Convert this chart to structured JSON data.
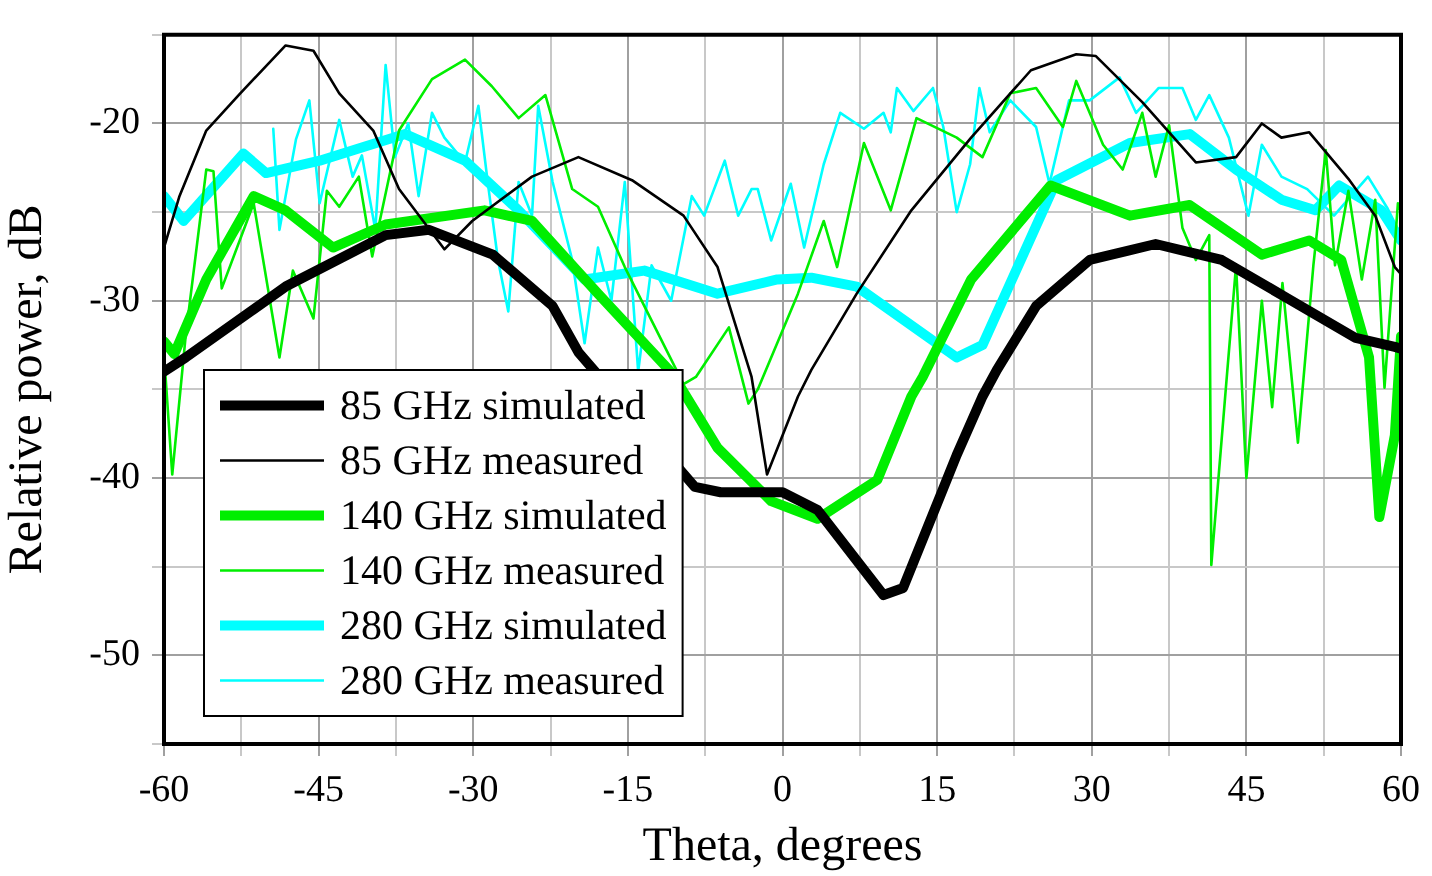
{
  "chart_data": {
    "type": "line",
    "xlabel": "Theta, degrees",
    "ylabel": "Relative power, dB",
    "xlim": [
      -60,
      60
    ],
    "ylim": [
      -55,
      -15
    ],
    "xticks": [
      -60,
      {
        "value": -52.5,
        "label": null
      },
      -45,
      {
        "value": -37.5,
        "label": null
      },
      -30,
      {
        "value": -22.5,
        "label": null
      },
      -15,
      {
        "value": -7.5,
        "label": null
      },
      0,
      {
        "value": 7.5,
        "label": null
      },
      15,
      {
        "value": 22.5,
        "label": null
      },
      30,
      {
        "value": 37.5,
        "label": null
      },
      45,
      {
        "value": 52.5,
        "label": null
      },
      60
    ],
    "yticks": [
      {
        "value": -55,
        "label": null
      },
      -50,
      {
        "value": -45,
        "label": null
      },
      -40,
      {
        "value": -35,
        "label": null
      },
      -30,
      {
        "value": -25,
        "label": null
      },
      -20,
      {
        "value": -15,
        "label": null
      }
    ],
    "grid": true,
    "legend": "bottom left",
    "marker": "none",
    "line_style": "solid",
    "series": [
      {
        "name": "85 GHz simulated",
        "color": "#000000",
        "x": [
          -60,
          -57.9,
          -48.2,
          -38.5,
          -34.3,
          -28.1,
          -22.3,
          -19.8,
          -8.5,
          -6,
          0,
          3.4,
          9.8,
          11.7,
          16.9,
          19.4,
          20.8,
          24.6,
          29.8,
          36.2,
          42.6,
          49.1,
          55.6,
          59.4,
          60
        ],
        "values": [
          -34,
          -33.2,
          -29.2,
          -26.3,
          -26,
          -27.4,
          -30.3,
          -32.9,
          -40.5,
          -40.8,
          -40.8,
          -41.8,
          -46.6,
          -46.2,
          -38.7,
          -35.4,
          -33.9,
          -30.3,
          -27.7,
          -26.8,
          -27.7,
          -29.9,
          -32.1,
          -32.6,
          -32.7
        ]
      },
      {
        "name": "85 GHz measured",
        "color": "#000000",
        "x": [
          -60,
          -58.5,
          -55.9,
          -52.6,
          -48.2,
          -45.5,
          -43,
          -39.7,
          -37.2,
          -32.8,
          -30.1,
          -24.3,
          -19.8,
          -14.6,
          -9.6,
          -6.3,
          -3,
          -1.5,
          1.5,
          2.8,
          7.2,
          12.5,
          18.3,
          24.1,
          28.5,
          30.4,
          34.9,
          40.1,
          44,
          46.5,
          48.4,
          51.1,
          55,
          57.5,
          59.4,
          60
        ],
        "values": [
          -27,
          -24.1,
          -20.4,
          -18.3,
          -15.6,
          -15.9,
          -18.3,
          -20.4,
          -23.7,
          -27.1,
          -25.5,
          -23,
          -21.9,
          -23.2,
          -25.2,
          -28.1,
          -34.3,
          -39.8,
          -35.4,
          -33.9,
          -29.6,
          -24.9,
          -20.8,
          -17,
          -16.1,
          -16.2,
          -18.8,
          -22.2,
          -21.9,
          -20,
          -20.8,
          -20.5,
          -23.2,
          -25.2,
          -28.1,
          -28.5
        ]
      },
      {
        "name": "140 GHz simulated",
        "color": "#00ee00",
        "x": [
          -60,
          -59,
          -55.9,
          -51.3,
          -48.2,
          -43.6,
          -38.5,
          -28.9,
          -24.3,
          -17.9,
          -10.7,
          -6.3,
          -1.1,
          3.4,
          9.2,
          12.5,
          13.6,
          18.3,
          26,
          33.7,
          39.5,
          46.5,
          51.1,
          54.2,
          56.9,
          57.9,
          59.4,
          60
        ],
        "values": [
          -32.3,
          -33,
          -28.8,
          -24.1,
          -24.9,
          -27,
          -25.7,
          -24.9,
          -25.5,
          -29.6,
          -34.1,
          -38.3,
          -41.3,
          -42.3,
          -40.1,
          -35.4,
          -34.3,
          -28.8,
          -23.5,
          -25.2,
          -24.6,
          -27.4,
          -26.6,
          -27.7,
          -33.2,
          -42.2,
          -37.6,
          -32
        ]
      },
      {
        "name": "140 GHz measured",
        "color": "#00ee00",
        "x": [
          -60,
          -59.2,
          -57.9,
          -55.9,
          -55.2,
          -54.4,
          -51.3,
          -48.8,
          -47.5,
          -45.5,
          -44.2,
          -43,
          -41.1,
          -39.8,
          -37.2,
          -34,
          -30.8,
          -28.2,
          -25.6,
          -23,
          -20.4,
          -17.9,
          -15.3,
          -9.6,
          -8.4,
          -5.2,
          -3.3,
          -2.4,
          1.5,
          4,
          5.3,
          7.9,
          10.5,
          13,
          16.9,
          19.4,
          22.1,
          24.6,
          27.2,
          28.5,
          31.1,
          33,
          34.9,
          36.2,
          37.5,
          38.8,
          40.1,
          41.4,
          41.6,
          43,
          44,
          45,
          46.5,
          47.5,
          48.5,
          50,
          51.5,
          52.7,
          53.6,
          54.9,
          56.2,
          57.5,
          58.4,
          59.7,
          60
        ],
        "values": [
          -33,
          -39.8,
          -32,
          -22.6,
          -22.7,
          -29.3,
          -24.5,
          -33.2,
          -28.3,
          -31,
          -23.8,
          -24.7,
          -23,
          -27.5,
          -20.4,
          -17.5,
          -16.4,
          -17.9,
          -19.7,
          -18.4,
          -23.7,
          -24.7,
          -28.1,
          -34.7,
          -34.3,
          -31.5,
          -35.8,
          -35,
          -29.6,
          -25.5,
          -28.1,
          -21.1,
          -24.9,
          -19.7,
          -20.8,
          -21.9,
          -18.3,
          -18,
          -20.2,
          -17.6,
          -21.2,
          -22.6,
          -19.4,
          -23,
          -20.1,
          -25.9,
          -27.7,
          -26.3,
          -44.9,
          -35,
          -28,
          -40,
          -30,
          -36,
          -29,
          -38,
          -28,
          -21.5,
          -28,
          -23.8,
          -28.8,
          -24.3,
          -34.9,
          -24.5,
          -25
        ]
      },
      {
        "name": "280 GHz simulated",
        "color": "#00ffff",
        "x": [
          -60,
          -58.1,
          -52.3,
          -50.1,
          -44.9,
          -40.5,
          -36.6,
          -30.8,
          -25.6,
          -19.2,
          -13.4,
          -6.3,
          -0.5,
          2.8,
          7.2,
          16.9,
          19.4,
          26.6,
          33.7,
          39.5,
          44,
          48.4,
          51.7,
          54,
          58.1,
          60
        ],
        "values": [
          -24.1,
          -25.5,
          -21.7,
          -22.8,
          -22.1,
          -21.3,
          -20.6,
          -22.1,
          -24.9,
          -28.8,
          -28.3,
          -29.6,
          -28.8,
          -28.7,
          -29.2,
          -33.2,
          -32.5,
          -23.2,
          -21.1,
          -20.6,
          -22.6,
          -24.3,
          -24.9,
          -23.5,
          -24.9,
          -26.6
        ]
      },
      {
        "name": "280 GHz measured",
        "color": "#00ffff",
        "x": [
          -49.4,
          -48.8,
          -47.2,
          -45.9,
          -44.9,
          -43,
          -41.7,
          -40.8,
          -39.5,
          -38.5,
          -37.6,
          -36.3,
          -35.3,
          -34,
          -32.8,
          -30.8,
          -29.5,
          -28.6,
          -27.6,
          -26.6,
          -25.6,
          -24.3,
          -23.7,
          -22.3,
          -20.4,
          -19.2,
          -17.9,
          -16.6,
          -15.3,
          -14,
          -12.7,
          -10.8,
          -8.8,
          -7.6,
          -5.6,
          -4.3,
          -3,
          -2.4,
          -1.1,
          0.8,
          2.1,
          4,
          5.6,
          7.9,
          9.8,
          10.5,
          11.1,
          12.7,
          14.6,
          15.6,
          16.9,
          18.2,
          19.1,
          20.1,
          22.1,
          24.6,
          25.9,
          27.8,
          29.8,
          32.7,
          34.3,
          36.5,
          38.8,
          40.1,
          41.4,
          43.3,
          45.2,
          46.5,
          48.4,
          50.9,
          53.5,
          56.8,
          58.7,
          59.9
        ],
        "values": [
          -20.3,
          -26,
          -20.9,
          -18.7,
          -24.5,
          -19.8,
          -23,
          -21.8,
          -26,
          -16.7,
          -21.9,
          -20,
          -24.1,
          -19.4,
          -20.8,
          -22.2,
          -19,
          -23.3,
          -27.7,
          -30.6,
          -23.3,
          -25.2,
          -19,
          -23.3,
          -27.7,
          -32.4,
          -27,
          -30,
          -23.3,
          -34,
          -28,
          -30,
          -24.1,
          -25.2,
          -22.1,
          -25.2,
          -23.7,
          -23.7,
          -26.6,
          -23.4,
          -27,
          -22.3,
          -19.4,
          -20.3,
          -19.4,
          -20.5,
          -18,
          -19.3,
          -18,
          -20.2,
          -25,
          -22.3,
          -18,
          -20.5,
          -18.7,
          -20.2,
          -23.4,
          -18.7,
          -18.7,
          -17.4,
          -19.4,
          -18,
          -18,
          -19.8,
          -18.4,
          -20.8,
          -25.2,
          -21.2,
          -23,
          -23.7,
          -25.2,
          -23,
          -24.8,
          -26.2
        ]
      }
    ]
  }
}
